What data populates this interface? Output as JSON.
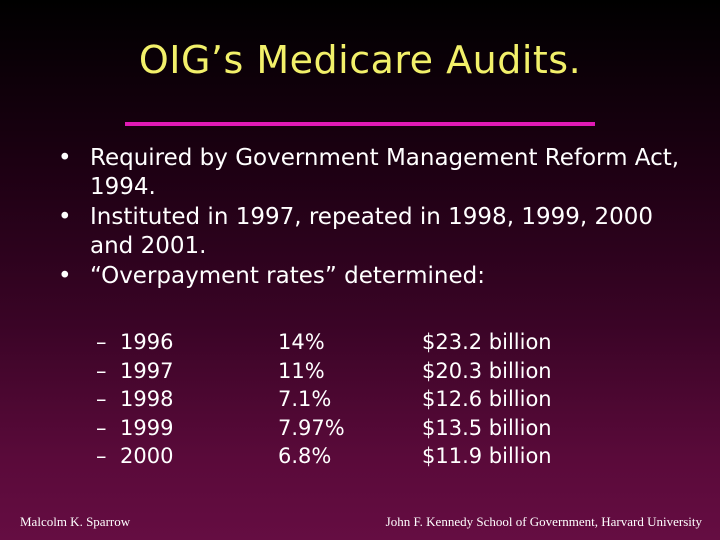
{
  "slide": {
    "title": "OIG’s Medicare Audits.",
    "accent_color": "#e01ab5",
    "title_color": "#f2f06a",
    "background_color": "#5a0a3a"
  },
  "bullets": [
    {
      "marker": "•",
      "text": "Required by Government Management Reform Act, 1994."
    },
    {
      "marker": "•",
      "text": "Instituted in 1997, repeated in 1998, 1999, 2000 and 2001."
    },
    {
      "marker": "•",
      "text": "“Overpayment rates” determined:"
    }
  ],
  "overpayment_table": [
    {
      "dash": "–",
      "year": "1996",
      "rate": "14%",
      "amount": "$23.2 billion"
    },
    {
      "dash": "–",
      "year": "1997",
      "rate": "11%",
      "amount": "$20.3 billion"
    },
    {
      "dash": "–",
      "year": "1998",
      "rate": "7.1%",
      "amount": "$12.6 billion"
    },
    {
      "dash": "–",
      "year": "1999",
      "rate": "7.97%",
      "amount": "$13.5 billion"
    },
    {
      "dash": "–",
      "year": "2000",
      "rate": "6.8%",
      "amount": "$11.9 billion"
    }
  ],
  "footer": {
    "left": "Malcolm K. Sparrow",
    "right": "John F. Kennedy School of Government, Harvard University"
  }
}
